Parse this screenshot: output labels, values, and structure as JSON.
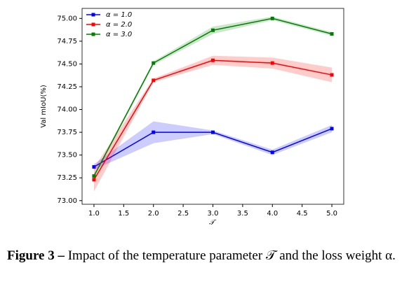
{
  "chart_data": {
    "type": "line",
    "y_label": "Val mIoU(%)",
    "x_label": "𝒯",
    "x": [
      1,
      2,
      3,
      4,
      5
    ],
    "xlim": [
      0.8,
      5.2
    ],
    "xticks": [
      {
        "value": 1,
        "label": "1.0"
      },
      {
        "value": 1.5,
        "label": "1.5"
      },
      {
        "value": 2,
        "label": "2.0"
      },
      {
        "value": 2.5,
        "label": "2.5"
      },
      {
        "value": 3,
        "label": "3.0"
      },
      {
        "value": 3.5,
        "label": "3.5"
      },
      {
        "value": 4,
        "label": "4.0"
      },
      {
        "value": 4.5,
        "label": "4.5"
      },
      {
        "value": 5,
        "label": "5.0"
      }
    ],
    "ylim": [
      72.96,
      75.11
    ],
    "yticks": [
      {
        "value": 73,
        "label": "73.00"
      },
      {
        "value": 73.25,
        "label": "73.25"
      },
      {
        "value": 73.5,
        "label": "73.50"
      },
      {
        "value": 73.75,
        "label": "73.75"
      },
      {
        "value": 74,
        "label": "74.00"
      },
      {
        "value": 74.25,
        "label": "74.25"
      },
      {
        "value": 74.5,
        "label": "74.50"
      },
      {
        "value": 74.75,
        "label": "74.75"
      },
      {
        "value": 75,
        "label": "75.00"
      }
    ],
    "legend": "upper left",
    "series": [
      {
        "name": "α = 1.0",
        "color": "#0000ff",
        "values": [
          73.37,
          73.75,
          73.75,
          73.53,
          73.79
        ],
        "errors": [
          0.03,
          0.12,
          0.02,
          0.03,
          0.04
        ]
      },
      {
        "name": "α = 2.0",
        "color": "#ff0000",
        "values": [
          73.23,
          74.32,
          74.54,
          74.51,
          74.38
        ],
        "errors": [
          0.13,
          0.02,
          0.05,
          0.06,
          0.08
        ]
      },
      {
        "name": "α = 3.0",
        "color": "#008000",
        "values": [
          73.27,
          74.51,
          74.87,
          75.0,
          74.83
        ],
        "errors": [
          0.02,
          0.02,
          0.04,
          0.02,
          0.02
        ]
      }
    ]
  },
  "caption": {
    "label": "Figure 3 –",
    "text": "Impact of the temperature parameter 𝒯 and the loss weight α."
  }
}
